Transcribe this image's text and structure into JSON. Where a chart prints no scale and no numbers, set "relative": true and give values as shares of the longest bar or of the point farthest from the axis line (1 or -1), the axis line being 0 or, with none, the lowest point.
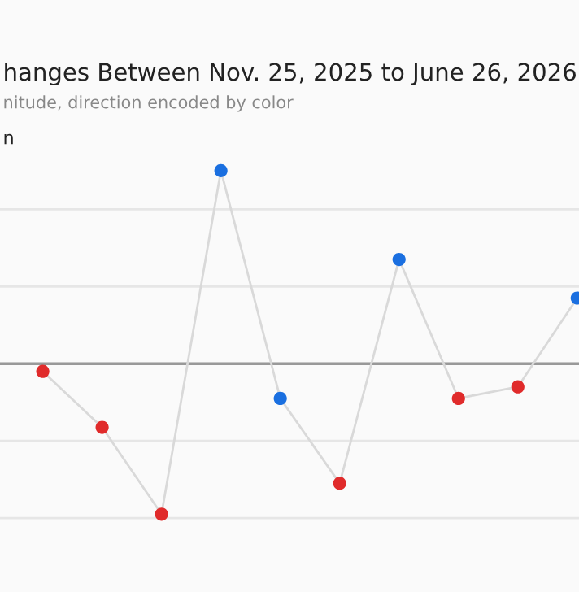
{
  "chart_data": {
    "type": "line",
    "title": "hanges Between Nov. 25, 2025 to June 26, 2026",
    "subtitle": "nitude, direction encoded by color",
    "annotations": [
      "n"
    ],
    "relative": true,
    "grid": "y",
    "marker": "circle",
    "line_style": "solid",
    "categories": [
      null,
      null,
      null,
      null,
      null,
      null,
      null,
      null,
      null,
      null
    ],
    "ref_lines": [
      {
        "axis": "y",
        "value": 0,
        "color": "#999999"
      }
    ],
    "series": [
      {
        "color": "#d9d9d9",
        "values": [
          -0.04,
          -0.33,
          -0.78,
          1,
          -0.18,
          -0.62,
          0.54,
          -0.18,
          -0.12,
          0.34
        ],
        "colors": [
          "#e02b2b",
          "#e02b2b",
          "#e02b2b",
          "#1a6fe0",
          "#1a6fe0",
          "#e02b2b",
          "#1a6fe0",
          "#e02b2b",
          "#e02b2b",
          "#1a6fe0"
        ]
      }
    ]
  }
}
